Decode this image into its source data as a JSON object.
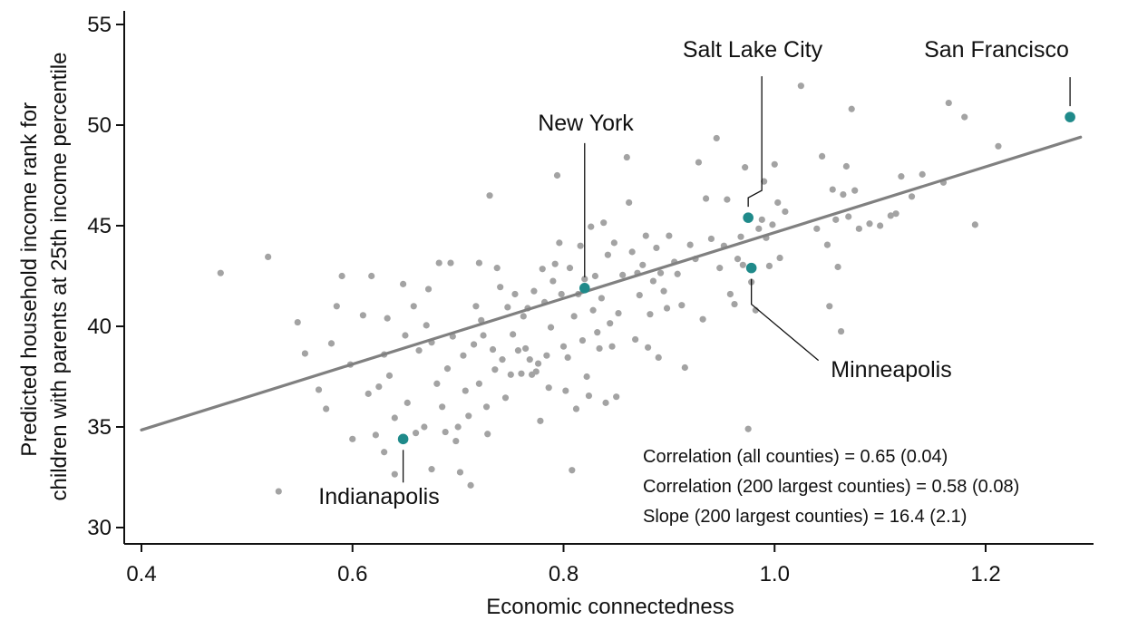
{
  "chart_data": {
    "type": "scatter",
    "title": "",
    "xlabel": "Economic connectedness",
    "ylabel": "Predicted household income rank for children with parents at 25th income percentile",
    "ylabel_lines": [
      "Predicted household income rank for",
      "children with parents at 25th income percentile"
    ],
    "xlim": [
      0.4,
      1.3
    ],
    "ylim": [
      30,
      55.5
    ],
    "x_ticks": [
      0.4,
      0.6,
      0.8,
      1.0,
      1.2
    ],
    "x_tick_labels": [
      "0.4",
      "0.6",
      "0.8",
      "1.0",
      "1.2"
    ],
    "y_ticks": [
      30,
      35,
      40,
      45,
      50,
      55
    ],
    "y_tick_labels": [
      "30",
      "35",
      "40",
      "45",
      "50",
      "55"
    ],
    "grid": false,
    "colors": {
      "points": "#a3a3a3",
      "fit_line": "#808080",
      "highlight": "#1f8a8a",
      "axis": "#111111"
    },
    "fit_line": {
      "x": [
        0.4,
        1.29
      ],
      "y": [
        34.85,
        49.4
      ]
    },
    "highlighted": [
      {
        "name": "San Francisco",
        "x": 1.28,
        "y": 50.4
      },
      {
        "name": "Salt Lake City",
        "x": 0.975,
        "y": 45.4
      },
      {
        "name": "New York",
        "x": 0.82,
        "y": 41.9
      },
      {
        "name": "Minneapolis",
        "x": 0.978,
        "y": 42.9
      },
      {
        "name": "Indianapolis",
        "x": 0.648,
        "y": 34.4
      }
    ],
    "annotations": [
      "Correlation (all counties) = 0.65 (0.04)",
      "Correlation (200 largest counties) = 0.58 (0.08)",
      "Slope (200 largest counties) = 16.4 (2.1)"
    ],
    "points": [
      [
        0.475,
        42.65
      ],
      [
        0.52,
        43.45
      ],
      [
        0.53,
        31.8
      ],
      [
        0.548,
        40.2
      ],
      [
        0.555,
        38.65
      ],
      [
        0.568,
        36.85
      ],
      [
        0.575,
        35.9
      ],
      [
        0.58,
        39.15
      ],
      [
        0.585,
        41.0
      ],
      [
        0.59,
        42.5
      ],
      [
        0.598,
        38.1
      ],
      [
        0.6,
        34.4
      ],
      [
        0.61,
        40.55
      ],
      [
        0.615,
        36.65
      ],
      [
        0.618,
        42.5
      ],
      [
        0.622,
        34.6
      ],
      [
        0.625,
        37.0
      ],
      [
        0.63,
        38.6
      ],
      [
        0.63,
        33.75
      ],
      [
        0.633,
        40.4
      ],
      [
        0.635,
        37.55
      ],
      [
        0.64,
        35.45
      ],
      [
        0.64,
        32.65
      ],
      [
        0.648,
        42.1
      ],
      [
        0.65,
        39.55
      ],
      [
        0.652,
        36.2
      ],
      [
        0.658,
        41.0
      ],
      [
        0.66,
        34.7
      ],
      [
        0.663,
        38.8
      ],
      [
        0.668,
        35.0
      ],
      [
        0.67,
        40.05
      ],
      [
        0.672,
        41.85
      ],
      [
        0.675,
        32.9
      ],
      [
        0.675,
        39.2
      ],
      [
        0.68,
        37.15
      ],
      [
        0.682,
        43.15
      ],
      [
        0.685,
        36.0
      ],
      [
        0.688,
        34.75
      ],
      [
        0.69,
        37.9
      ],
      [
        0.693,
        43.15
      ],
      [
        0.695,
        39.5
      ],
      [
        0.698,
        34.3
      ],
      [
        0.7,
        35.0
      ],
      [
        0.702,
        32.75
      ],
      [
        0.705,
        38.55
      ],
      [
        0.707,
        36.8
      ],
      [
        0.71,
        35.55
      ],
      [
        0.712,
        32.1
      ],
      [
        0.715,
        39.1
      ],
      [
        0.717,
        41.0
      ],
      [
        0.72,
        43.15
      ],
      [
        0.72,
        37.15
      ],
      [
        0.722,
        40.3
      ],
      [
        0.724,
        39.55
      ],
      [
        0.727,
        36.0
      ],
      [
        0.728,
        34.65
      ],
      [
        0.73,
        46.5
      ],
      [
        0.733,
        38.85
      ],
      [
        0.735,
        37.85
      ],
      [
        0.737,
        42.9
      ],
      [
        0.74,
        41.95
      ],
      [
        0.742,
        38.35
      ],
      [
        0.745,
        36.45
      ],
      [
        0.747,
        40.95
      ],
      [
        0.75,
        37.6
      ],
      [
        0.752,
        39.6
      ],
      [
        0.754,
        41.6
      ],
      [
        0.757,
        38.8
      ],
      [
        0.76,
        37.65
      ],
      [
        0.762,
        40.5
      ],
      [
        0.764,
        38.9
      ],
      [
        0.766,
        40.9
      ],
      [
        0.768,
        38.35
      ],
      [
        0.77,
        37.6
      ],
      [
        0.772,
        41.75
      ],
      [
        0.774,
        37.75
      ],
      [
        0.776,
        38.15
      ],
      [
        0.778,
        35.3
      ],
      [
        0.78,
        42.85
      ],
      [
        0.782,
        41.2
      ],
      [
        0.784,
        38.55
      ],
      [
        0.786,
        36.95
      ],
      [
        0.788,
        39.95
      ],
      [
        0.79,
        42.25
      ],
      [
        0.792,
        43.1
      ],
      [
        0.794,
        47.5
      ],
      [
        0.796,
        44.15
      ],
      [
        0.798,
        41.6
      ],
      [
        0.8,
        39.0
      ],
      [
        0.802,
        36.8
      ],
      [
        0.804,
        38.45
      ],
      [
        0.806,
        42.9
      ],
      [
        0.808,
        32.85
      ],
      [
        0.81,
        40.5
      ],
      [
        0.812,
        35.9
      ],
      [
        0.814,
        41.6
      ],
      [
        0.816,
        44.0
      ],
      [
        0.818,
        39.3
      ],
      [
        0.82,
        42.35
      ],
      [
        0.822,
        37.5
      ],
      [
        0.824,
        36.55
      ],
      [
        0.826,
        44.95
      ],
      [
        0.828,
        40.8
      ],
      [
        0.83,
        42.5
      ],
      [
        0.832,
        39.7
      ],
      [
        0.834,
        38.9
      ],
      [
        0.836,
        41.4
      ],
      [
        0.838,
        45.15
      ],
      [
        0.84,
        36.2
      ],
      [
        0.842,
        43.55
      ],
      [
        0.844,
        40.15
      ],
      [
        0.846,
        39.0
      ],
      [
        0.848,
        44.15
      ],
      [
        0.85,
        36.5
      ],
      [
        0.852,
        40.65
      ],
      [
        0.856,
        42.55
      ],
      [
        0.86,
        48.4
      ],
      [
        0.862,
        46.15
      ],
      [
        0.865,
        43.7
      ],
      [
        0.868,
        39.35
      ],
      [
        0.87,
        42.65
      ],
      [
        0.872,
        41.55
      ],
      [
        0.875,
        43.05
      ],
      [
        0.878,
        44.5
      ],
      [
        0.88,
        38.95
      ],
      [
        0.882,
        40.6
      ],
      [
        0.885,
        42.25
      ],
      [
        0.888,
        43.9
      ],
      [
        0.89,
        38.45
      ],
      [
        0.892,
        42.65
      ],
      [
        0.895,
        41.75
      ],
      [
        0.898,
        40.9
      ],
      [
        0.9,
        44.5
      ],
      [
        0.905,
        43.2
      ],
      [
        0.908,
        42.6
      ],
      [
        0.912,
        41.05
      ],
      [
        0.915,
        37.95
      ],
      [
        0.92,
        44.05
      ],
      [
        0.925,
        43.35
      ],
      [
        0.928,
        48.15
      ],
      [
        0.932,
        40.35
      ],
      [
        0.935,
        46.35
      ],
      [
        0.94,
        44.35
      ],
      [
        0.945,
        49.35
      ],
      [
        0.948,
        42.9
      ],
      [
        0.952,
        44.0
      ],
      [
        0.955,
        46.3
      ],
      [
        0.958,
        41.6
      ],
      [
        0.962,
        41.1
      ],
      [
        0.965,
        43.35
      ],
      [
        0.968,
        44.45
      ],
      [
        0.97,
        43.05
      ],
      [
        0.972,
        47.9
      ],
      [
        0.975,
        34.9
      ],
      [
        0.978,
        42.2
      ],
      [
        0.982,
        40.8
      ],
      [
        0.985,
        44.85
      ],
      [
        0.988,
        45.3
      ],
      [
        0.99,
        47.2
      ],
      [
        0.992,
        44.4
      ],
      [
        0.995,
        43.0
      ],
      [
        0.998,
        45.05
      ],
      [
        1.0,
        48.05
      ],
      [
        1.003,
        46.15
      ],
      [
        1.005,
        43.4
      ],
      [
        1.01,
        45.7
      ],
      [
        1.025,
        51.95
      ],
      [
        1.04,
        44.85
      ],
      [
        1.045,
        48.45
      ],
      [
        1.05,
        44.05
      ],
      [
        1.052,
        41.0
      ],
      [
        1.055,
        46.8
      ],
      [
        1.058,
        45.3
      ],
      [
        1.06,
        42.95
      ],
      [
        1.063,
        39.75
      ],
      [
        1.065,
        46.55
      ],
      [
        1.068,
        47.95
      ],
      [
        1.07,
        45.45
      ],
      [
        1.073,
        50.8
      ],
      [
        1.076,
        46.75
      ],
      [
        1.08,
        44.85
      ],
      [
        1.09,
        45.1
      ],
      [
        1.1,
        45.0
      ],
      [
        1.11,
        45.5
      ],
      [
        1.115,
        45.6
      ],
      [
        1.12,
        47.45
      ],
      [
        1.13,
        46.45
      ],
      [
        1.14,
        47.55
      ],
      [
        1.16,
        47.15
      ],
      [
        1.165,
        51.1
      ],
      [
        1.18,
        50.4
      ],
      [
        1.19,
        45.05
      ],
      [
        1.212,
        48.95
      ]
    ]
  }
}
